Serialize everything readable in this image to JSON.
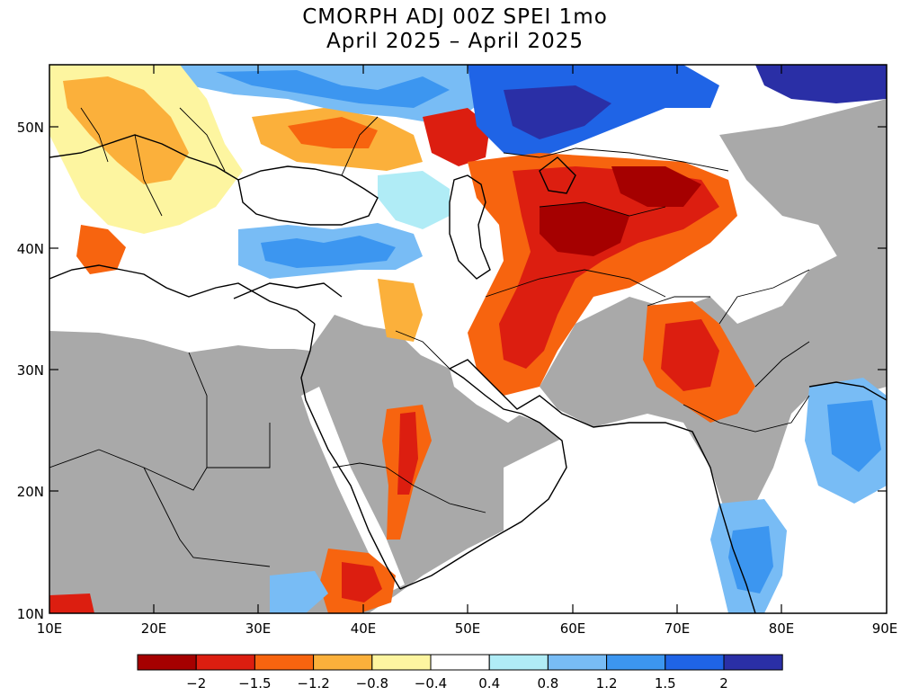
{
  "title": "CMORPH ADJ 00Z SPEI 1mo",
  "subtitle": "April 2025 – April 2025",
  "lat_labels": [
    "50N",
    "40N",
    "30N",
    "20N",
    "10N"
  ],
  "lon_labels": [
    "10E",
    "20E",
    "30E",
    "40E",
    "50E",
    "60E",
    "70E",
    "80E",
    "90E"
  ],
  "colorbar": {
    "colors": [
      "#a50000",
      "#dc1e10",
      "#f7640f",
      "#fbb03b",
      "#fdf5a0",
      "#ffffff",
      "#b0ecf6",
      "#78bcf5",
      "#3c96f0",
      "#1f64e6",
      "#2a2fa6"
    ],
    "labels": [
      "-2",
      "-1.5",
      "-1.2",
      "-0.8",
      "-0.4",
      "0.4",
      "0.8",
      "1.2",
      "1.5",
      "2"
    ]
  },
  "colors": {
    "no_data": "#a9a9a9",
    "background": "#ffffff",
    "border": "#000000"
  }
}
